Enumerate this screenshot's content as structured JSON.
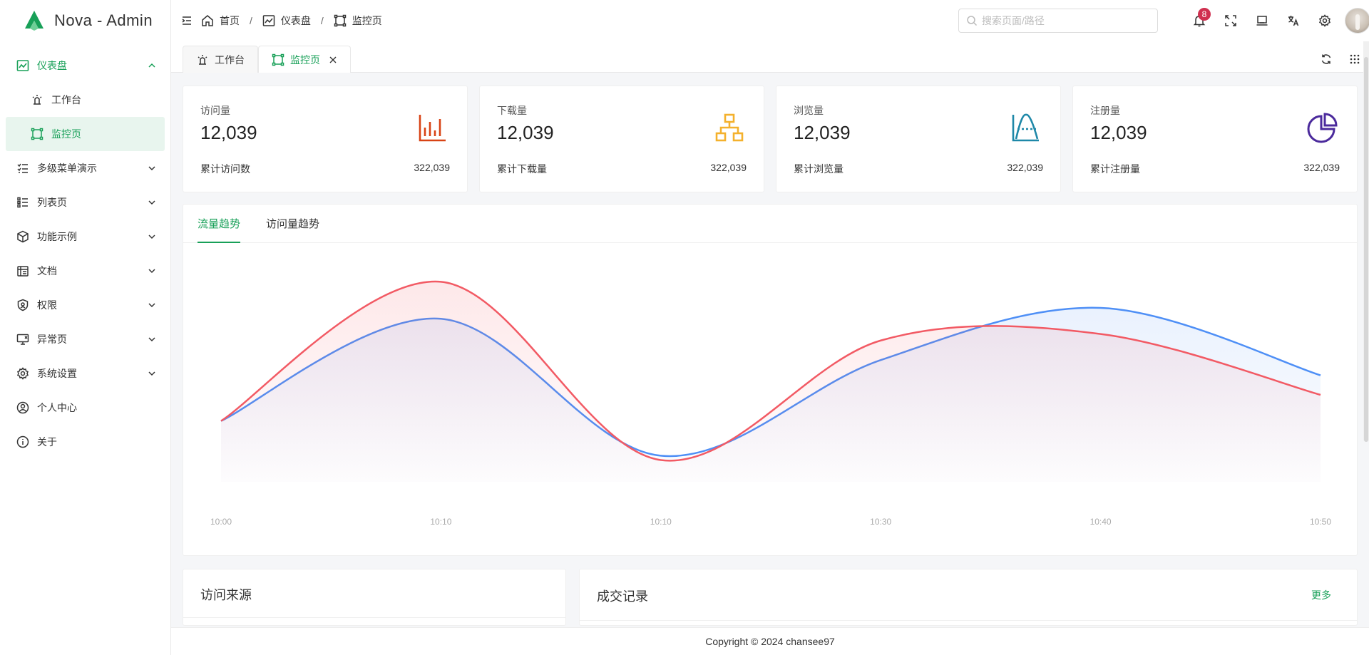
{
  "app": {
    "title": "Nova - Admin"
  },
  "sidebar": {
    "items": [
      {
        "label": "仪表盘",
        "icon": "dashboard-icon",
        "expanded": true,
        "active": true,
        "children": [
          {
            "label": "工作台",
            "icon": "workbench-icon"
          },
          {
            "label": "监控页",
            "icon": "monitor-icon",
            "active": true
          }
        ]
      },
      {
        "label": "多级菜单演示",
        "icon": "multilevel-menu-icon"
      },
      {
        "label": "列表页",
        "icon": "list-icon"
      },
      {
        "label": "功能示例",
        "icon": "feature-icon"
      },
      {
        "label": "文档",
        "icon": "document-icon"
      },
      {
        "label": "权限",
        "icon": "permission-icon"
      },
      {
        "label": "异常页",
        "icon": "exception-icon"
      },
      {
        "label": "系统设置",
        "icon": "settings-icon"
      },
      {
        "label": "个人中心",
        "icon": "user-center-icon"
      },
      {
        "label": "关于",
        "icon": "about-icon"
      }
    ]
  },
  "header": {
    "breadcrumb": [
      "首页",
      "仪表盘",
      "监控页"
    ],
    "search_placeholder": "搜索页面/路径",
    "notification_count": "8"
  },
  "tabs": [
    {
      "label": "工作台",
      "icon": "workbench-icon"
    },
    {
      "label": "监控页",
      "icon": "monitor-icon",
      "active": true
    }
  ],
  "stats": [
    {
      "label": "访问量",
      "value": "12,039",
      "footer_label": "累计访问数",
      "footer_value": "322,039",
      "icon": "bar-chart-icon",
      "color": "#d84315"
    },
    {
      "label": "下载量",
      "value": "12,039",
      "footer_label": "累计下载量",
      "footer_value": "322,039",
      "icon": "hierarchy-icon",
      "color": "#f4b12d"
    },
    {
      "label": "浏览量",
      "value": "12,039",
      "footer_label": "累计浏览量",
      "footer_value": "322,039",
      "icon": "bell-curve-icon",
      "color": "#1e88a8"
    },
    {
      "label": "注册量",
      "value": "12,039",
      "footer_label": "累计注册量",
      "footer_value": "322,039",
      "icon": "pie-chart-icon",
      "color": "#4b2a9c"
    }
  ],
  "chart_tabs": [
    "流量趋势",
    "访问量趋势"
  ],
  "chart_data": {
    "type": "area",
    "x": [
      "10:00",
      "10:10",
      "10:10",
      "10:30",
      "10:40",
      "10:50"
    ],
    "ylim": [
      0,
      100
    ],
    "grid": false,
    "series": [
      {
        "values": [
          28,
          75,
          12,
          56,
          80,
          49
        ],
        "color": "#4e8ff6"
      },
      {
        "values": [
          28,
          92,
          10,
          65,
          68,
          40
        ],
        "color": "#f25a64"
      }
    ]
  },
  "panels": {
    "source_title": "访问来源",
    "deals_title": "成交记录",
    "more_label": "更多"
  },
  "footer": {
    "copyright": "Copyright © 2024 chansee97"
  },
  "colors": {
    "primary": "#18a058",
    "badge": "#d03050"
  }
}
